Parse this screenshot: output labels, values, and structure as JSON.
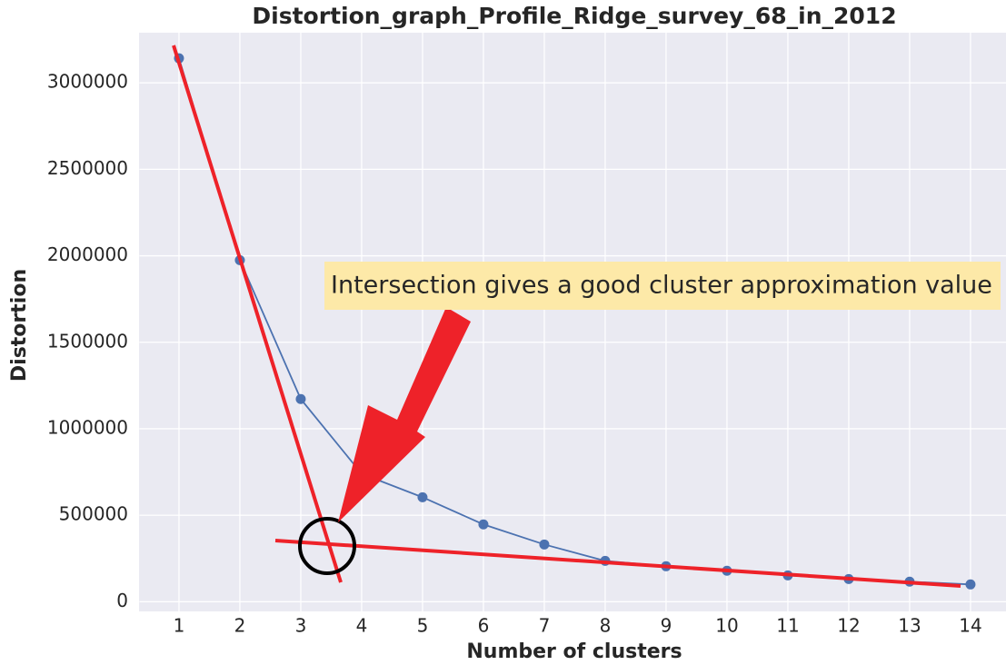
{
  "chart_data": {
    "type": "line",
    "title": "Distortion_graph_Profile_Ridge_survey_68_in_2012",
    "x_label": "Number of clusters",
    "y_label": "Distortion",
    "annotation": "Intersection gives a good cluster approximation value",
    "x": [
      1,
      2,
      3,
      4,
      5,
      6,
      7,
      8,
      9,
      10,
      11,
      12,
      13,
      14
    ],
    "series": [
      {
        "name": "Distortion",
        "color": "#4c72b0",
        "values": [
          3142000,
          1975000,
          1172000,
          740000,
          604000,
          447000,
          331000,
          236000,
          205000,
          179000,
          152000,
          131000,
          116000,
          100000
        ]
      }
    ],
    "xlim": [
      0.35,
      14.65
    ],
    "ylim": [
      -56000,
      3290000
    ],
    "xticks": [
      1,
      2,
      3,
      4,
      5,
      6,
      7,
      8,
      9,
      10,
      11,
      12,
      13,
      14
    ],
    "yticks": [
      0,
      500000,
      1000000,
      1500000,
      2000000,
      2500000,
      3000000
    ],
    "grid": true
  }
}
